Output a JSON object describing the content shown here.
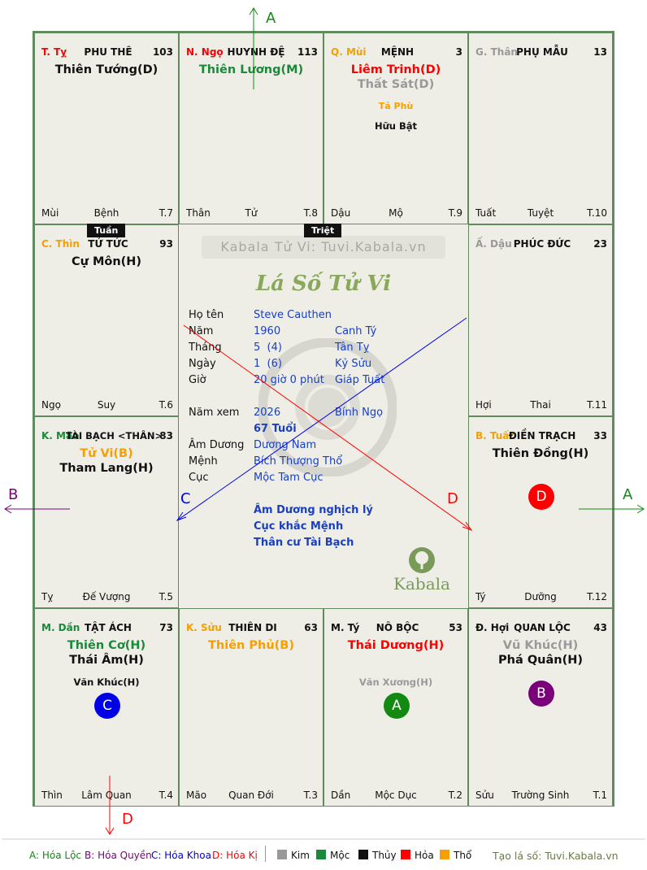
{
  "site_title": "Kabala Tử Vi: Tuvi.Kabala.vn",
  "chart_title": "Lá Số Tử Vi",
  "brand": "Kabala",
  "tags": {
    "tuan": "Tuần",
    "triet": "Triệt"
  },
  "cells": {
    "ty": {
      "branch": "T. Tỵ",
      "palace": "PHU THÊ",
      "num": "103",
      "stars": [
        "Thiên Tướng(D)"
      ],
      "minor": [],
      "foot_l": "Mùi",
      "foot_c": "Bệnh",
      "foot_r": "T.7"
    },
    "ngo": {
      "branch": "N. Ngọ",
      "palace": "HUYNH ĐỆ",
      "num": "113",
      "stars": [
        "Thiên Lương(M)"
      ],
      "minor": [],
      "foot_l": "Thân",
      "foot_c": "Tử",
      "foot_r": "T.8"
    },
    "mui": {
      "branch": "Q. Mùi",
      "palace": "MỆNH",
      "num": "3",
      "stars": [
        "Liêm Trinh(D)",
        "Thất Sát(D)"
      ],
      "minor": [
        "Tả Phù",
        "Hữu Bật"
      ],
      "foot_l": "Dậu",
      "foot_c": "Mộ",
      "foot_r": "T.9"
    },
    "than": {
      "branch": "G. Thân",
      "palace": "PHỤ MẪU",
      "num": "13",
      "stars": [],
      "minor": [],
      "foot_l": "Tuất",
      "foot_c": "Tuyệt",
      "foot_r": "T.10"
    },
    "thin": {
      "branch": "C. Thìn",
      "palace": "TỬ TỨC",
      "num": "93",
      "stars": [
        "Cự Môn(H)"
      ],
      "minor": [],
      "foot_l": "Ngọ",
      "foot_c": "Suy",
      "foot_r": "T.6"
    },
    "dau": {
      "branch": "Ấ. Dậu",
      "palace": "PHÚC ĐỨC",
      "num": "23",
      "stars": [],
      "minor": [],
      "foot_l": "Hợi",
      "foot_c": "Thai",
      "foot_r": "T.11"
    },
    "mao": {
      "branch": "K. Mão",
      "palace": "TÀI BẠCH <THÂN>",
      "num": "83",
      "stars": [
        "Tử Vi(B)",
        "Tham Lang(H)"
      ],
      "minor": [],
      "foot_l": "Tỵ",
      "foot_c": "Đế Vượng",
      "foot_r": "T.5"
    },
    "tuat": {
      "branch": "B. Tuất",
      "palace": "ĐIỀN TRẠCH",
      "num": "33",
      "stars": [
        "Thiên Đồng(H)"
      ],
      "minor": [],
      "circle": "D",
      "foot_l": "Tý",
      "foot_c": "Dưỡng",
      "foot_r": "T.12"
    },
    "dan": {
      "branch": "M. Dần",
      "palace": "TẬT ÁCH",
      "num": "73",
      "stars": [
        "Thiên Cơ(H)",
        "Thái Âm(H)"
      ],
      "minor": [
        "Văn Khúc(H)"
      ],
      "circle": "C",
      "foot_l": "Thìn",
      "foot_c": "Lâm Quan",
      "foot_r": "T.4"
    },
    "suu": {
      "branch": "K. Sửu",
      "palace": "THIÊN DI",
      "num": "63",
      "stars": [
        "Thiên Phủ(B)"
      ],
      "minor": [],
      "foot_l": "Mão",
      "foot_c": "Quan Đới",
      "foot_r": "T.3"
    },
    "ty2": {
      "branch": "M. Tý",
      "palace": "NÔ BỘC",
      "num": "53",
      "stars": [
        "Thái Dương(H)"
      ],
      "minor": [
        "Văn Xương(H)"
      ],
      "circle": "A",
      "foot_l": "Dần",
      "foot_c": "Mộc Dục",
      "foot_r": "T.2"
    },
    "hoi": {
      "branch": "Đ. Hợi",
      "palace": "QUAN LỘC",
      "num": "43",
      "stars": [
        "Vũ Khúc(H)",
        "Phá Quân(H)"
      ],
      "minor": [],
      "circle": "B",
      "foot_l": "Sửu",
      "foot_c": "Trường Sinh",
      "foot_r": "T.1"
    }
  },
  "info": {
    "ho_ten_label": "Họ tên",
    "ho_ten": "Steve Cauthen",
    "nam_label": "Năm",
    "nam": "1960",
    "nam_can": "Canh Tý",
    "thang_label": "Tháng",
    "thang": "5  (4)",
    "thang_can": "Tân Tỵ",
    "ngay_label": "Ngày",
    "ngay": "1  (6)",
    "ngay_can": "Kỷ Sửu",
    "gio_label": "Giờ",
    "gio": "20 giờ 0 phút",
    "gio_can": "Giáp Tuất",
    "namxem_label": "Năm xem",
    "namxem": "2026",
    "namxem_can": "Bính Ngọ",
    "tuoi": "67 Tuổi",
    "amduong_label": "Âm Dương",
    "amduong": "Dương Nam",
    "menh_label": "Mệnh",
    "menh": "Bích Thượng Thổ",
    "cuc_label": "Cục",
    "cuc": "Mộc Tam Cục",
    "note1": "Âm Dương nghịch lý",
    "note2": "Cục khắc Mệnh",
    "note3": "Thân cư Tài Bạch"
  },
  "arrows": {
    "a": "A",
    "b": "B",
    "c": "C",
    "d": "D"
  },
  "legend": {
    "a": "A: Hóa Lộc",
    "b": "B: Hóa Quyền",
    "c": "C: Hóa Khoa",
    "d": "D: Hóa Kị",
    "kim": "Kim",
    "moc": "Mộc",
    "thuy": "Thủy",
    "hoa": "Hỏa",
    "tho": "Thổ",
    "site": "Tạo lá số: Tuvi.Kabala.vn"
  },
  "colors": {
    "kim": "#999999",
    "moc": "#1a8a3a",
    "thuy": "#111111",
    "hoa": "#ff0000",
    "tho": "#f5a000",
    "a_circle": "#128a12",
    "b_circle": "#7a007a",
    "c_circle": "#0000e6",
    "d_circle": "#ff0000"
  }
}
